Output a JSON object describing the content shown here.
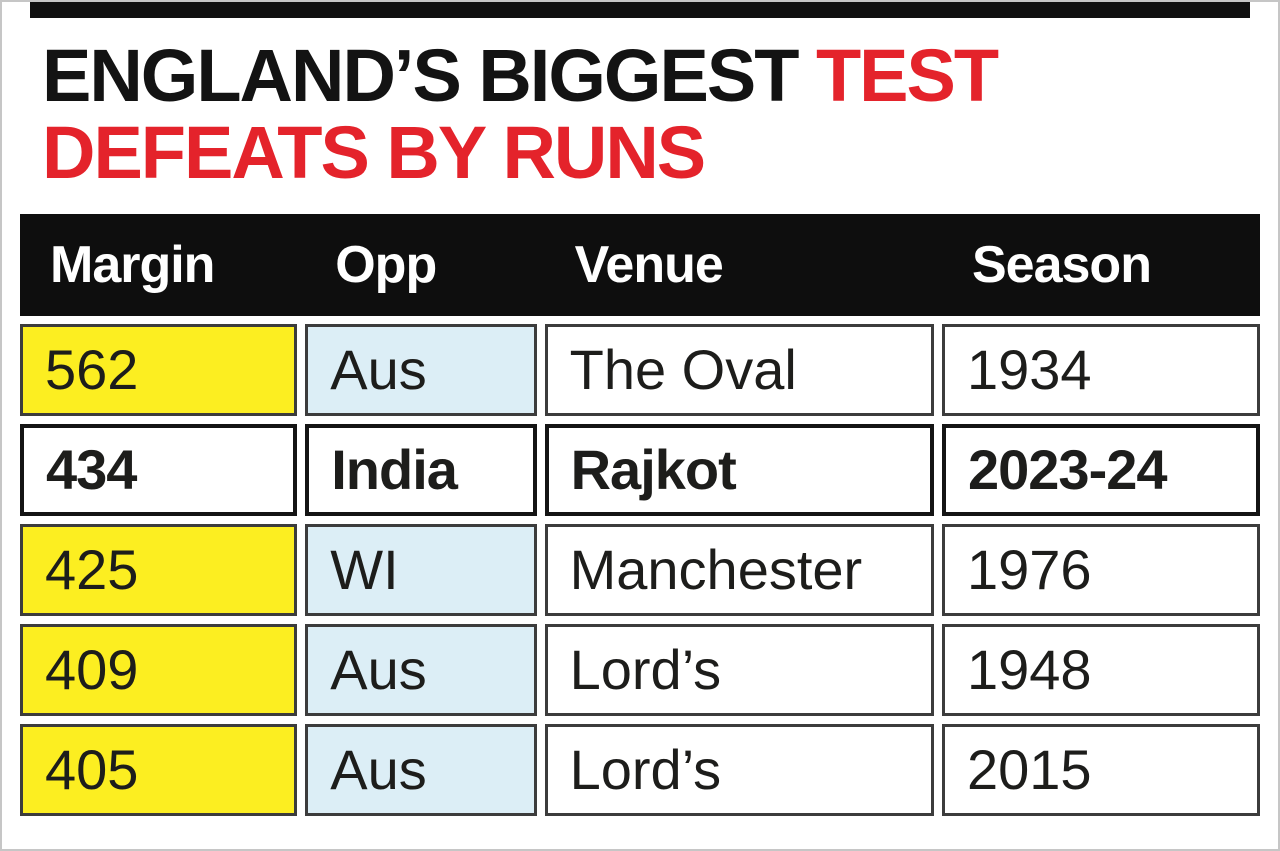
{
  "title": {
    "line1_black": "ENGLAND’S BIGGEST ",
    "line1_red": "TEST",
    "line2_red": "DEFEATS BY RUNS"
  },
  "table": {
    "columns": [
      "Margin",
      "Opp",
      "Venue",
      "Season"
    ],
    "rows": [
      {
        "margin": "562",
        "opp": "Aus",
        "venue": "The Oval",
        "season": "1934",
        "highlight": false
      },
      {
        "margin": "434",
        "opp": "India",
        "venue": "Rajkot",
        "season": "2023-24",
        "highlight": true
      },
      {
        "margin": "425",
        "opp": "WI",
        "venue": "Manchester",
        "season": "1976",
        "highlight": false
      },
      {
        "margin": "409",
        "opp": "Aus",
        "venue": "Lord’s",
        "season": "1948",
        "highlight": false
      },
      {
        "margin": "405",
        "opp": "Aus",
        "venue": "Lord’s",
        "season": "2015",
        "highlight": false
      }
    ]
  },
  "colors": {
    "title_red": "#e4232b",
    "margin_col_bg": "#fcee21",
    "opp_col_bg": "#dceef6",
    "header_bg": "#0e0e0e"
  },
  "chart_data": {
    "type": "table",
    "title": "England's biggest Test defeats by runs",
    "columns": [
      "Margin",
      "Opp",
      "Venue",
      "Season"
    ],
    "rows": [
      [
        "562",
        "Aus",
        "The Oval",
        "1934"
      ],
      [
        "434",
        "India",
        "Rajkot",
        "2023-24"
      ],
      [
        "425",
        "WI",
        "Manchester",
        "1976"
      ],
      [
        "409",
        "Aus",
        "Lord's",
        "1948"
      ],
      [
        "405",
        "Aus",
        "Lord's",
        "2015"
      ]
    ],
    "highlighted_row_index": 1
  }
}
